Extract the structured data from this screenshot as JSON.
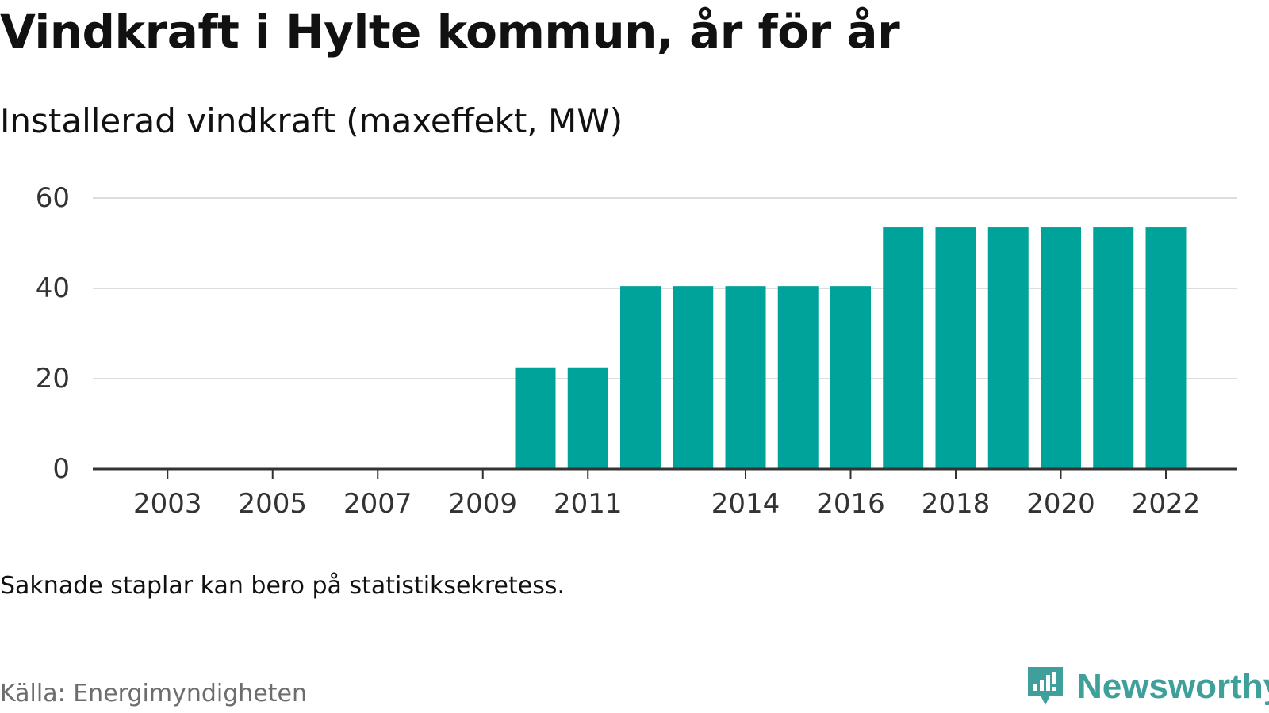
{
  "title": "Vindkraft i Hylte kommun, år för år",
  "subtitle": "Installerad vindkraft (maxeffekt, MW)",
  "note": "Saknade staplar kan bero på statistiksekretess.",
  "source": "Källa: Energimyndigheten",
  "brand": {
    "name": "Newsworthy",
    "icon": "newsworthy-logo-icon",
    "color": "#3f9f9a"
  },
  "colors": {
    "bar": "#00a39a",
    "grid": "#dddddd",
    "axis": "#333333",
    "tick_text": "#333333"
  },
  "chart_data": {
    "type": "bar",
    "title": "Vindkraft i Hylte kommun, år för år",
    "subtitle": "Installerad vindkraft (maxeffekt, MW)",
    "xlabel": "",
    "ylabel": "",
    "categories": [
      "2002",
      "2003",
      "2004",
      "2005",
      "2006",
      "2007",
      "2008",
      "2009",
      "2010",
      "2011",
      "2012",
      "2013",
      "2014",
      "2015",
      "2016",
      "2017",
      "2018",
      "2019",
      "2020",
      "2021",
      "2022"
    ],
    "values": [
      0,
      0,
      0,
      0,
      0,
      0,
      0,
      0,
      22.5,
      22.5,
      40.5,
      40.5,
      40.5,
      40.5,
      40.5,
      53.5,
      53.5,
      53.5,
      53.5,
      53.5,
      53.5
    ],
    "x_tick_labels": [
      "2003",
      "2005",
      "2007",
      "2009",
      "2011",
      "2014",
      "2016",
      "2018",
      "2020",
      "2022"
    ],
    "y_ticks": [
      0,
      20,
      40,
      60
    ],
    "ylim": [
      0,
      60
    ],
    "grid": true
  }
}
